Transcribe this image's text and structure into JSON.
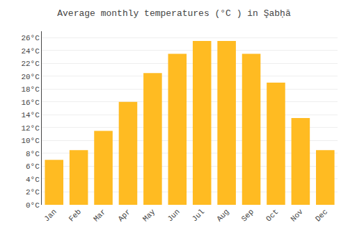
{
  "chart_data": {
    "type": "bar",
    "title": "Average monthly temperatures (°C ) in Şabḥā",
    "categories": [
      "Jan",
      "Feb",
      "Mar",
      "Apr",
      "May",
      "Jun",
      "Jul",
      "Aug",
      "Sep",
      "Oct",
      "Nov",
      "Dec"
    ],
    "values": [
      7.0,
      8.5,
      11.5,
      16.0,
      20.5,
      23.5,
      25.5,
      25.5,
      23.5,
      19.0,
      13.5,
      8.5
    ],
    "color": "#FFBB22",
    "ylim": [
      0,
      27
    ],
    "yticks": [
      {
        "value": 0,
        "label": "0°C"
      },
      {
        "value": 2,
        "label": "2°C"
      },
      {
        "value": 4,
        "label": "4°C"
      },
      {
        "value": 6,
        "label": "6°C"
      },
      {
        "value": 8,
        "label": "8°C"
      },
      {
        "value": 10,
        "label": "10°C"
      },
      {
        "value": 12,
        "label": "12°C"
      },
      {
        "value": 14,
        "label": "14°C"
      },
      {
        "value": 16,
        "label": "16°C"
      },
      {
        "value": 18,
        "label": "18°C"
      },
      {
        "value": 20,
        "label": "20°C"
      },
      {
        "value": 22,
        "label": "22°C"
      },
      {
        "value": 24,
        "label": "24°C"
      },
      {
        "value": 26,
        "label": "26°C"
      }
    ],
    "grid": true
  }
}
